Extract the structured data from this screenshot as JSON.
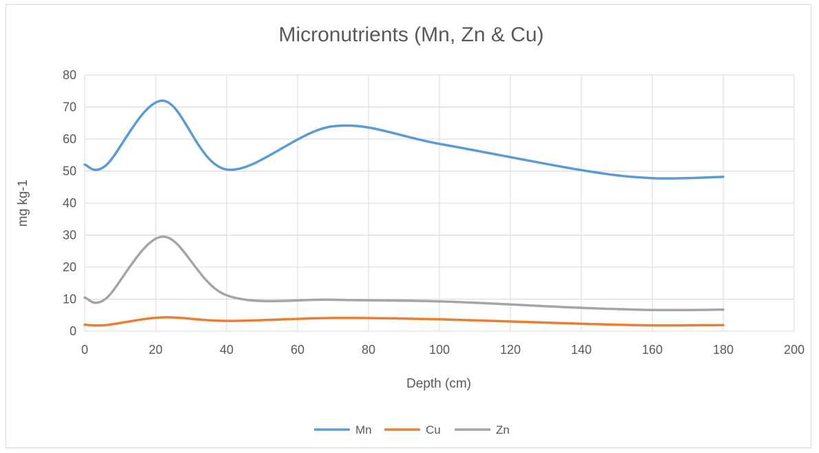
{
  "chart_data": {
    "type": "line",
    "title": "Micronutrients  (Mn, Zn & Cu)",
    "xlabel": "Depth (cm)",
    "ylabel": "mg kg-1",
    "xlim": [
      0,
      200
    ],
    "ylim": [
      0,
      80
    ],
    "x_ticks": [
      "0",
      "20",
      "40",
      "60",
      "80",
      "100",
      "120",
      "140",
      "160",
      "180",
      "200"
    ],
    "y_ticks": [
      "0",
      "10",
      "20",
      "30",
      "40",
      "50",
      "60",
      "70",
      "80"
    ],
    "grid": true,
    "smooth": true,
    "legend_position": "bottom",
    "series": [
      {
        "name": "Mn",
        "color": "#5b9bd5",
        "points": [
          [
            0,
            52.0
          ],
          [
            6,
            51.8
          ],
          [
            22,
            72.0
          ],
          [
            40,
            50.5
          ],
          [
            70,
            64.0
          ],
          [
            100,
            58.5
          ],
          [
            140,
            50.3
          ],
          [
            160,
            47.8
          ],
          [
            180,
            48.2
          ]
        ]
      },
      {
        "name": "Cu",
        "color": "#ed7d31",
        "points": [
          [
            0,
            2.0
          ],
          [
            6,
            1.9
          ],
          [
            22,
            4.3
          ],
          [
            40,
            3.2
          ],
          [
            70,
            4.1
          ],
          [
            100,
            3.7
          ],
          [
            140,
            2.3
          ],
          [
            160,
            1.8
          ],
          [
            180,
            1.9
          ]
        ]
      },
      {
        "name": "Zn",
        "color": "#a5a5a5",
        "points": [
          [
            0,
            10.5
          ],
          [
            6,
            10.2
          ],
          [
            22,
            29.5
          ],
          [
            40,
            11.2
          ],
          [
            70,
            9.8
          ],
          [
            100,
            9.3
          ],
          [
            140,
            7.3
          ],
          [
            160,
            6.6
          ],
          [
            180,
            6.7
          ]
        ]
      }
    ]
  }
}
